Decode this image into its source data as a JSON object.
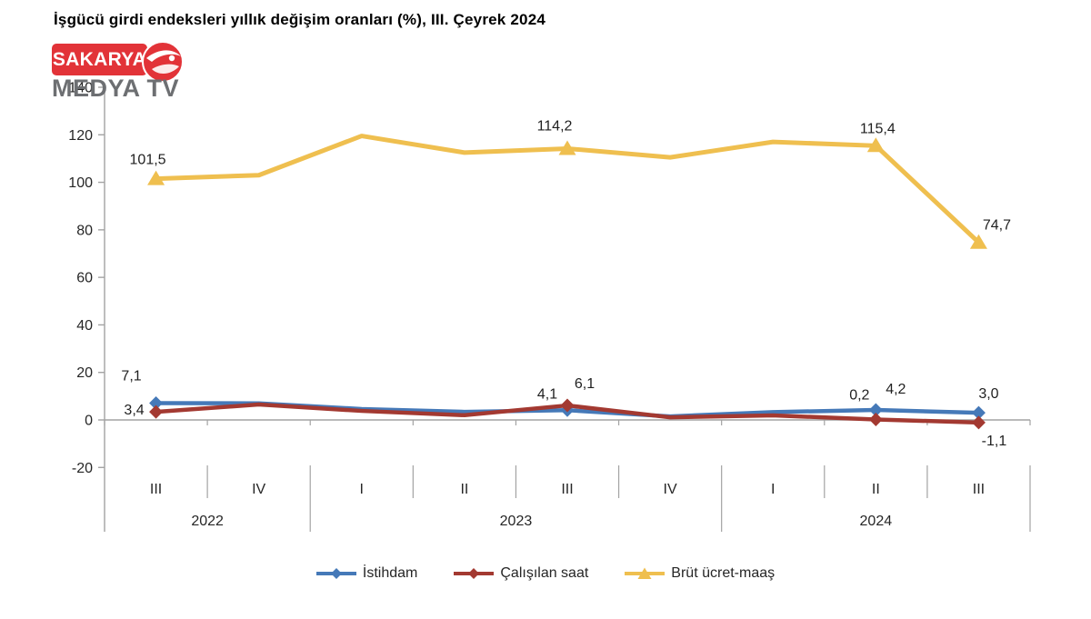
{
  "title": {
    "text": "İşgücü girdi endeksleri yıllık değişim oranları (%), III. Çeyrek 2024"
  },
  "logo": {
    "line1": "SAKARYA",
    "line2": "MEDYA TV",
    "box_color": "#e23338",
    "sub_color": "#6d6f72"
  },
  "chart_data": {
    "type": "line",
    "title": "İşgücü girdi endeksleri yıllık değişim oranları (%), III. Çeyrek 2024",
    "ylabel": "",
    "xlabel": "",
    "grid": false,
    "legend_position": "bottom",
    "axis_color": "#a3a3a3",
    "text_color": "#262626",
    "label_color": "#1f1f1f",
    "y_axis": {
      "min": -20,
      "max": 140,
      "ticks": [
        140,
        120,
        100,
        80,
        60,
        40,
        20,
        0,
        -20
      ]
    },
    "x_categories": [
      {
        "quarter": "III",
        "year": "2022"
      },
      {
        "quarter": "IV",
        "year": "2022"
      },
      {
        "quarter": "I",
        "year": "2023"
      },
      {
        "quarter": "II",
        "year": "2023"
      },
      {
        "quarter": "III",
        "year": "2023"
      },
      {
        "quarter": "IV",
        "year": "2023"
      },
      {
        "quarter": "I",
        "year": "2024"
      },
      {
        "quarter": "II",
        "year": "2024"
      },
      {
        "quarter": "III",
        "year": "2024"
      }
    ],
    "series": [
      {
        "name": "İstihdam",
        "color": "#4579b8",
        "marker": "diamond",
        "values": [
          7.1,
          7.0,
          4.6,
          3.4,
          4.1,
          1.5,
          3.3,
          4.2,
          3.0
        ],
        "point_labels": {
          "0": "7,1",
          "4": "4,1",
          "7": "4,2",
          "8": "3,0"
        }
      },
      {
        "name": "Çalışılan saat",
        "color": "#a33931",
        "marker": "diamond",
        "values": [
          3.4,
          6.5,
          3.8,
          2.0,
          6.1,
          1.1,
          1.9,
          0.2,
          -1.1
        ],
        "point_labels": {
          "0": "3,4",
          "4": "6,1",
          "7": "0,2",
          "8": "-1,1"
        }
      },
      {
        "name": "Brüt ücret-maaş",
        "color": "#efbf4f",
        "marker": "triangle",
        "values": [
          101.5,
          103.0,
          119.5,
          112.5,
          114.2,
          110.5,
          117.0,
          115.4,
          74.7
        ],
        "point_labels": {
          "0": "101,5",
          "4": "114,2",
          "7": "115,4",
          "8": "74,7"
        }
      }
    ]
  }
}
